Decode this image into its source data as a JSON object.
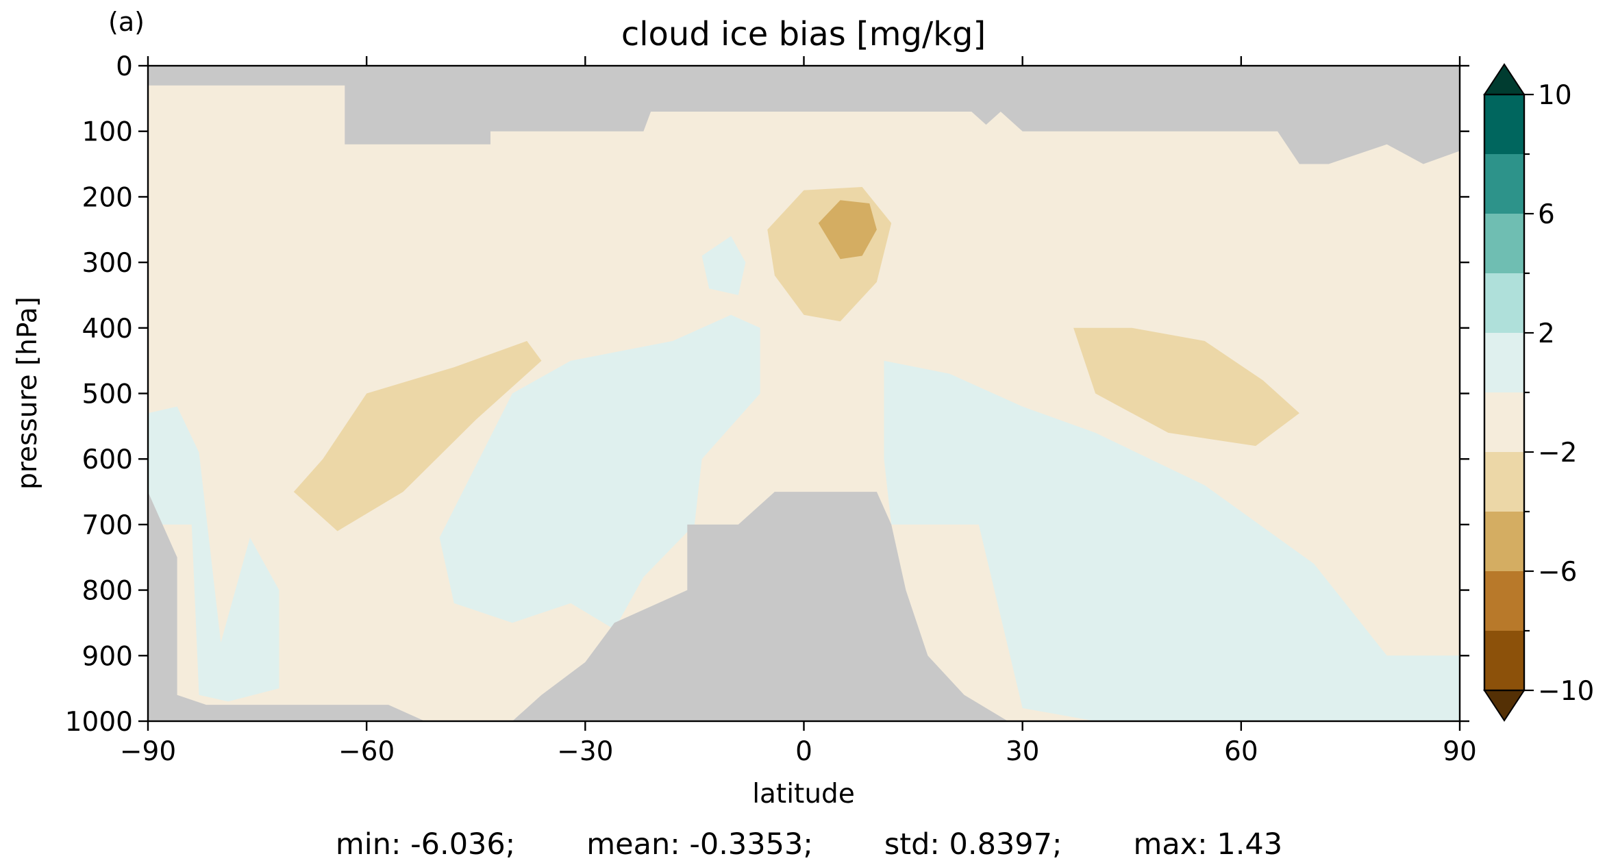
{
  "panel_label": "(a)",
  "chart_data": {
    "type": "filled-contour",
    "title": "cloud ice bias [mg/kg]",
    "xlabel": "latitude",
    "ylabel": "pressure [hPa]",
    "xlim": [
      -90,
      90
    ],
    "ylim": [
      1000,
      0
    ],
    "y_inverted": true,
    "x_ticks": [
      -90,
      -60,
      -30,
      0,
      30,
      60,
      90
    ],
    "x_tick_labels": [
      "−90",
      "−60",
      "−30",
      "0",
      "30",
      "60",
      "90"
    ],
    "y_ticks": [
      0,
      100,
      200,
      300,
      400,
      500,
      600,
      700,
      800,
      900,
      1000
    ],
    "y_tick_labels": [
      "0",
      "100",
      "200",
      "300",
      "400",
      "500",
      "600",
      "700",
      "800",
      "900",
      "1000"
    ],
    "grid": false,
    "missing_color": "#c8c8c8",
    "colorbar": {
      "levels": [
        -10,
        -8,
        -6,
        -4,
        -2,
        0,
        2,
        4,
        6,
        8,
        10
      ],
      "labeled_ticks": [
        -10,
        -6,
        -2,
        2,
        6,
        10
      ],
      "tick_labels": [
        "−10",
        "−6",
        "−2",
        "2",
        "6",
        "10"
      ],
      "colors": [
        "#8c510a",
        "#b8792a",
        "#d4ad62",
        "#ecd7a7",
        "#f5ecdb",
        "#dff0ee",
        "#afe0da",
        "#6fbeb2",
        "#2d938a",
        "#00665e"
      ],
      "extend_under_color": "#543005",
      "extend_over_color": "#003c30"
    },
    "regions": [
      {
        "level_range": [
          -2,
          0
        ],
        "description": "broad slightly negative bias",
        "points": [
          [
            -90,
            290
          ],
          [
            -80,
            260
          ],
          [
            -70,
            200
          ],
          [
            -60,
            220
          ],
          [
            -45,
            230
          ],
          [
            -40,
            340
          ],
          [
            -25,
            290
          ],
          [
            -12,
            180
          ],
          [
            0,
            160
          ],
          [
            10,
            150
          ],
          [
            22,
            190
          ],
          [
            35,
            300
          ],
          [
            55,
            280
          ],
          [
            75,
            290
          ],
          [
            90,
            280
          ],
          [
            90,
            1000
          ],
          [
            -90,
            1000
          ]
        ]
      },
      {
        "level_range": [
          -2,
          0
        ],
        "description": "upper-left pocket",
        "points": [
          [
            -85,
            30
          ],
          [
            -58,
            30
          ],
          [
            -58,
            100
          ],
          [
            -68,
            105
          ],
          [
            -72,
            150
          ]
        ]
      },
      {
        "level_range": [
          -4,
          -2
        ],
        "description": "southern mid-level band",
        "points": [
          [
            -70,
            650
          ],
          [
            -66,
            600
          ],
          [
            -60,
            500
          ],
          [
            -48,
            460
          ],
          [
            -38,
            420
          ],
          [
            -36,
            450
          ],
          [
            -45,
            540
          ],
          [
            -55,
            650
          ],
          [
            -64,
            710
          ]
        ]
      },
      {
        "level_range": [
          -4,
          -2
        ],
        "description": "tropical upper band",
        "points": [
          [
            -5,
            250
          ],
          [
            0,
            190
          ],
          [
            8,
            185
          ],
          [
            12,
            240
          ],
          [
            10,
            330
          ],
          [
            5,
            390
          ],
          [
            0,
            380
          ],
          [
            -4,
            320
          ]
        ]
      },
      {
        "level_range": [
          -6,
          -4
        ],
        "description": "tropical upper core",
        "points": [
          [
            2,
            240
          ],
          [
            5,
            205
          ],
          [
            9,
            210
          ],
          [
            10,
            250
          ],
          [
            8,
            290
          ],
          [
            5,
            295
          ]
        ]
      },
      {
        "level_range": [
          -4,
          -2
        ],
        "description": "northern mid-level band",
        "points": [
          [
            37,
            400
          ],
          [
            45,
            400
          ],
          [
            55,
            420
          ],
          [
            63,
            480
          ],
          [
            68,
            530
          ],
          [
            62,
            580
          ],
          [
            50,
            560
          ],
          [
            40,
            500
          ]
        ]
      },
      {
        "level_range": [
          0,
          2
        ],
        "description": "southern high-latitude lower column",
        "points": [
          [
            -90,
            530
          ],
          [
            -86,
            520
          ],
          [
            -83,
            590
          ],
          [
            -80,
            880
          ],
          [
            -76,
            720
          ],
          [
            -72,
            800
          ],
          [
            -72,
            950
          ],
          [
            -79,
            970
          ],
          [
            -83,
            960
          ],
          [
            -84,
            700
          ],
          [
            -90,
            700
          ]
        ]
      },
      {
        "level_range": [
          0,
          2
        ],
        "description": "southern subtropical mid-level",
        "points": [
          [
            -40,
            500
          ],
          [
            -32,
            450
          ],
          [
            -18,
            420
          ],
          [
            -10,
            380
          ],
          [
            -6,
            400
          ],
          [
            -6,
            500
          ],
          [
            -14,
            600
          ],
          [
            -15,
            700
          ],
          [
            -22,
            780
          ],
          [
            -26,
            860
          ],
          [
            -32,
            820
          ],
          [
            -40,
            850
          ],
          [
            -48,
            820
          ],
          [
            -50,
            720
          ]
        ]
      },
      {
        "level_range": [
          0,
          2
        ],
        "description": "northern subtropical lower",
        "points": [
          [
            11,
            450
          ],
          [
            20,
            470
          ],
          [
            30,
            520
          ],
          [
            40,
            560
          ],
          [
            55,
            640
          ],
          [
            70,
            760
          ],
          [
            80,
            900
          ],
          [
            90,
            900
          ],
          [
            90,
            1000
          ],
          [
            40,
            1000
          ],
          [
            30,
            980
          ],
          [
            24,
            700
          ],
          [
            12,
            700
          ],
          [
            11,
            600
          ]
        ]
      },
      {
        "level_range": [
          0,
          2
        ],
        "description": "tropical upper small pocket",
        "points": [
          [
            -14,
            290
          ],
          [
            -10,
            260
          ],
          [
            -8,
            300
          ],
          [
            -9,
            350
          ],
          [
            -13,
            340
          ]
        ]
      }
    ],
    "missing_regions": [
      {
        "description": "top strip",
        "points": [
          [
            -90,
            0
          ],
          [
            90,
            0
          ],
          [
            90,
            130
          ],
          [
            85,
            150
          ],
          [
            80,
            120
          ],
          [
            72,
            150
          ],
          [
            68,
            150
          ],
          [
            65,
            100
          ],
          [
            30,
            100
          ],
          [
            27,
            70
          ],
          [
            25,
            90
          ],
          [
            23,
            70
          ],
          [
            15,
            70
          ],
          [
            -21,
            70
          ],
          [
            -22,
            100
          ],
          [
            -43,
            100
          ],
          [
            -43,
            120
          ],
          [
            -63,
            120
          ],
          [
            -63,
            30
          ],
          [
            -90,
            30
          ]
        ]
      },
      {
        "description": "antarctic surface",
        "points": [
          [
            -90,
            650
          ],
          [
            -86,
            750
          ],
          [
            -86,
            960
          ],
          [
            -82,
            975
          ],
          [
            -57,
            975
          ],
          [
            -52,
            1000
          ],
          [
            -90,
            1000
          ]
        ]
      },
      {
        "description": "tropical orography",
        "points": [
          [
            -40,
            1000
          ],
          [
            -36,
            960
          ],
          [
            -30,
            910
          ],
          [
            -26,
            850
          ],
          [
            -16,
            800
          ],
          [
            -16,
            700
          ],
          [
            -9,
            700
          ],
          [
            -4,
            650
          ],
          [
            10,
            650
          ],
          [
            12,
            700
          ],
          [
            14,
            800
          ],
          [
            17,
            900
          ],
          [
            22,
            960
          ],
          [
            28,
            1000
          ]
        ]
      }
    ],
    "stats": {
      "min": "-6.036",
      "mean": "-0.3353",
      "std": "0.8397",
      "max": "1.43"
    }
  },
  "stats_text": {
    "min": "min: -6.036;",
    "mean": "mean: -0.3353;",
    "std": "std: 0.8397;",
    "max": "max: 1.43"
  }
}
